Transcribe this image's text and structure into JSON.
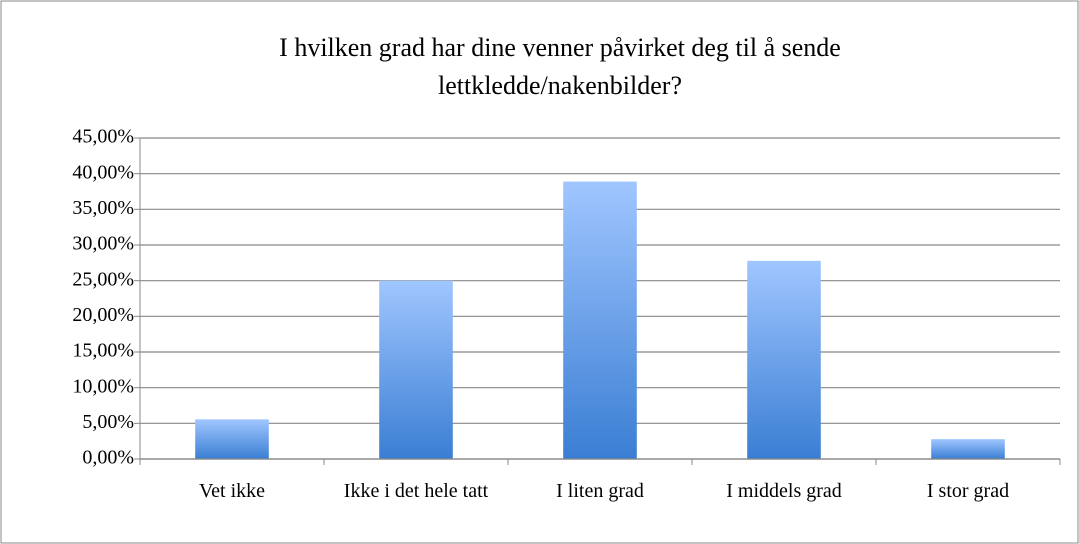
{
  "chart_data": {
    "type": "bar",
    "title": [
      "I hvilken grad har dine venner påvirket deg til å sende",
      "lettkledde/nakenbilder?"
    ],
    "categories": [
      "Vet ikke",
      "Ikke i det hele tatt",
      "I liten grad",
      "I middels grad",
      "I stor grad"
    ],
    "values": [
      5.56,
      25,
      38.89,
      27.78,
      2.78
    ],
    "color": [
      "#a0c6ff",
      "#3a7ed3"
    ],
    "ylim": [
      0,
      45
    ],
    "yticks": [
      {
        "value": 0,
        "label": "0,00%"
      },
      {
        "value": 5,
        "label": "5,00%"
      },
      {
        "value": 10,
        "label": "10,00%"
      },
      {
        "value": 15,
        "label": "15,00%"
      },
      {
        "value": 20,
        "label": "20,00%"
      },
      {
        "value": 25,
        "label": "25,00%"
      },
      {
        "value": 30,
        "label": "30,00%"
      },
      {
        "value": 35,
        "label": "35,00%"
      },
      {
        "value": 40,
        "label": "40,00%"
      },
      {
        "value": 45,
        "label": "45,00%"
      }
    ],
    "grid": true
  }
}
